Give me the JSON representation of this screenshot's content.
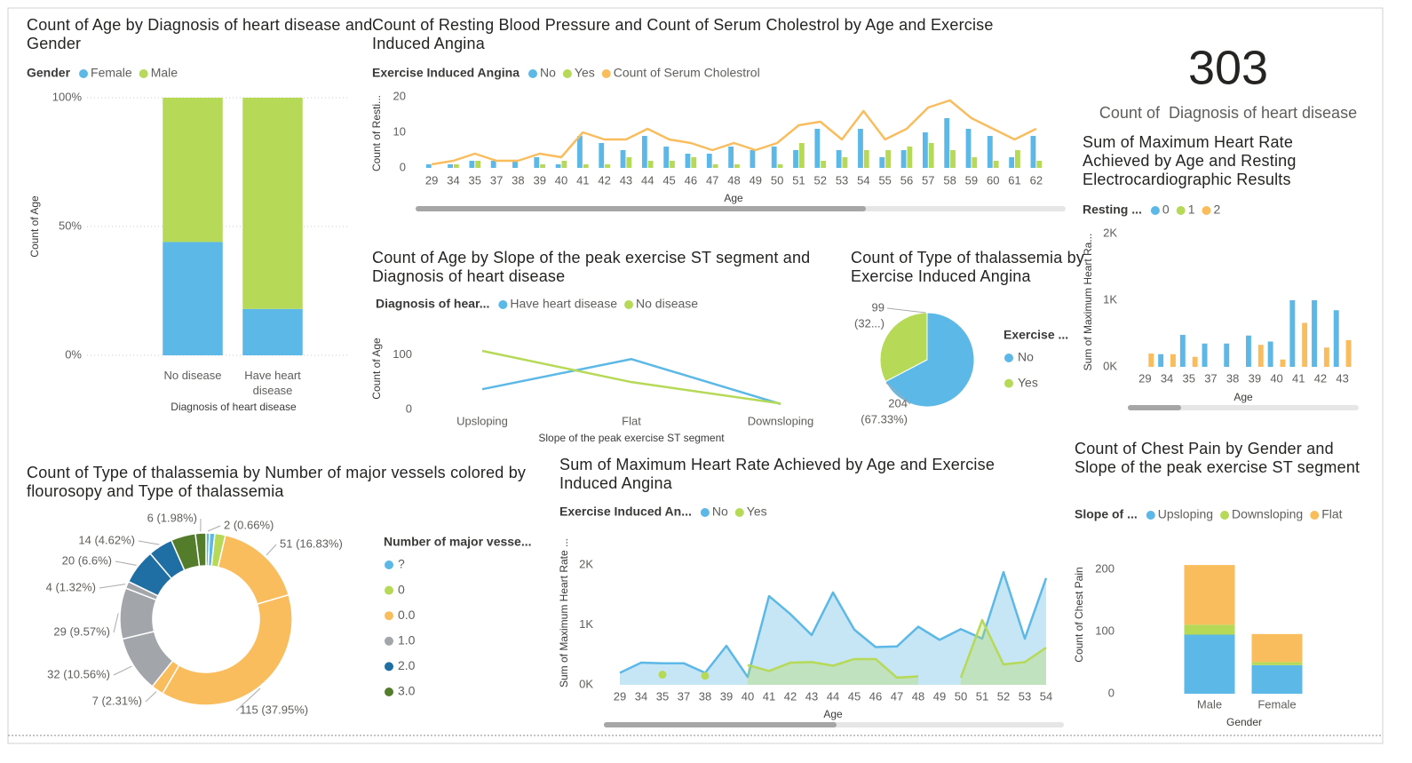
{
  "chart_data": [
    {
      "type": "bar",
      "stacked": true,
      "title": "Count of Age by Diagnosis of heart disease and Gender",
      "legend_title": "Gender",
      "categories": [
        "No disease",
        "Have heart disease"
      ],
      "series": [
        {
          "name": "Female",
          "color": "#5cb8e6",
          "values": [
            44,
            18
          ]
        },
        {
          "name": "Male",
          "color": "#b6d957",
          "values": [
            56,
            82
          ]
        }
      ],
      "ylim": [
        0,
        100
      ],
      "yticks": [
        {
          "value": 0,
          "label": "0%"
        },
        {
          "value": 50,
          "label": "50%"
        },
        {
          "value": 100,
          "label": "100%"
        }
      ],
      "x_label": "Diagnosis of heart disease",
      "y_label": "Count of Age",
      "grid": true
    },
    {
      "type": "combo",
      "title": "Count of Resting Blood Pressure and Count of Serum Cholestrol by Age and Exercise Induced Angina",
      "legend_title": "Exercise Induced Angina",
      "categories": [
        29,
        34,
        35,
        37,
        38,
        39,
        40,
        41,
        42,
        43,
        44,
        45,
        46,
        47,
        48,
        49,
        50,
        51,
        52,
        53,
        54,
        55,
        56,
        57,
        58,
        59,
        60,
        61,
        62
      ],
      "series": [
        {
          "name": "No",
          "color": "#5cb8e6",
          "values": [
            1,
            1,
            2,
            2,
            2,
            3,
            1,
            9,
            7,
            5,
            9,
            6,
            4,
            4,
            6,
            5,
            6,
            5,
            11,
            5,
            11,
            3,
            5,
            10,
            14,
            11,
            9,
            3,
            9
          ]
        },
        {
          "name": "Yes",
          "color": "#b6d957",
          "values": [
            0,
            1,
            2,
            0,
            0,
            1,
            2,
            1,
            1,
            3,
            2,
            2,
            3,
            1,
            1,
            0,
            1,
            7,
            2,
            3,
            5,
            5,
            6,
            7,
            5,
            3,
            2,
            5,
            2
          ]
        },
        {
          "name": "Count of Serum Cholestrol",
          "kind": "line",
          "color": "#f9bd5e",
          "values": [
            1,
            2,
            4,
            2,
            2,
            4,
            3,
            10,
            8,
            8,
            11,
            8,
            7,
            5,
            7,
            5,
            7,
            12,
            13,
            8,
            16,
            8,
            11,
            17,
            19,
            14,
            11,
            8,
            11
          ]
        }
      ],
      "ylim": [
        0,
        20
      ],
      "yticks": [
        0,
        10,
        20
      ],
      "x_label": "Age",
      "y_label": "Count of Resti..."
    },
    {
      "type": "line",
      "title": "Count of Age by Slope of the peak exercise ST segment and Diagnosis of heart disease",
      "legend_title": "Diagnosis of hear...",
      "categories": [
        "Upsloping",
        "Flat",
        "Downsloping"
      ],
      "series": [
        {
          "name": "Have heart disease",
          "color": "#5cb8e6",
          "values": [
            37,
            92,
            10
          ]
        },
        {
          "name": "No disease",
          "color": "#b6d957",
          "values": [
            107,
            50,
            11
          ]
        }
      ],
      "ylim": [
        0,
        120
      ],
      "yticks": [
        0,
        100
      ],
      "x_label": "Slope of the peak exercise ST segment",
      "y_label": "Count of Age"
    },
    {
      "type": "pie",
      "title": "Count of Type of thalassemia by Exercise Induced Angina",
      "legend_title": "Exercise ...",
      "categories": [
        "No",
        "Yes"
      ],
      "colors": [
        "#5cb8e6",
        "#b6d957"
      ],
      "values": [
        204,
        99
      ],
      "percent_labels": [
        "(67.33%)",
        "(32...)"
      ]
    },
    {
      "type": "card",
      "value": 303,
      "label": "Count of  Diagnosis of heart disease"
    },
    {
      "type": "bar",
      "stacked": false,
      "title": "Sum of Maximum Heart Rate Achieved by Age and Resting Electrocardiographic Results",
      "legend_title": "Resting ...",
      "categories": [
        29,
        34,
        35,
        37,
        38,
        39,
        40,
        41,
        42,
        43
      ],
      "series": [
        {
          "name": "0",
          "color": "#5cb8e6",
          "values": [
            null,
            190,
            480,
            350,
            350,
            470,
            380,
            1000,
            1000,
            850
          ]
        },
        {
          "name": "1",
          "color": "#b6d957",
          "values": [
            null,
            null,
            null,
            null,
            null,
            null,
            null,
            null,
            null,
            null
          ]
        },
        {
          "name": "2",
          "color": "#f9bd5e",
          "values": [
            200,
            190,
            150,
            null,
            null,
            330,
            110,
            660,
            290,
            400
          ]
        }
      ],
      "ylim": [
        0,
        2000
      ],
      "yticks": [
        {
          "value": 0,
          "label": "0K"
        },
        {
          "value": 1000,
          "label": "1K"
        },
        {
          "value": 2000,
          "label": "2K"
        }
      ],
      "x_label": "Age",
      "y_label": "Sum of Maximum Heart Ra..."
    },
    {
      "type": "donut",
      "title": "Count of Type of thalassemia by Number of major vessels colored by flourosopy and Type of thalassemia",
      "legend_title": "Number of major vesse...",
      "groups": [
        {
          "name": "?",
          "color": "#5cb8e6",
          "slices": [
            {
              "value": 2,
              "label": "2 (0.66%)"
            },
            {
              "value": 3
            }
          ]
        },
        {
          "name": "0",
          "color": "#b6d957",
          "slices": [
            {
              "value": 6
            }
          ]
        },
        {
          "name": "0.0",
          "color": "#f9bd5e",
          "slices": [
            {
              "value": 51,
              "label": "51 (16.83%)"
            },
            {
              "value": 115,
              "label": "115 (37.95%)"
            },
            {
              "value": 7,
              "label": "7 (2.31%)"
            }
          ]
        },
        {
          "name": "1.0",
          "color": "#a2a6aa",
          "slices": [
            {
              "value": 32,
              "label": "32 (10.56%)"
            },
            {
              "value": 29,
              "label": "29 (9.57%)"
            },
            {
              "value": 4,
              "label": "4 (1.32%)"
            }
          ]
        },
        {
          "name": "2.0",
          "color": "#1f6fa5",
          "slices": [
            {
              "value": 20,
              "label": "20 (6.6%)"
            },
            {
              "value": 14,
              "label": "14 (4.62%)"
            }
          ]
        },
        {
          "name": "3.0",
          "color": "#537d2a",
          "slices": [
            {
              "value": 14
            },
            {
              "value": 6,
              "label": "6 (1.98%)"
            }
          ]
        }
      ]
    },
    {
      "type": "area",
      "title": "Sum of Maximum Heart Rate Achieved by Age and Exercise Induced Angina",
      "legend_title": "Exercise Induced An...",
      "categories": [
        29,
        34,
        35,
        37,
        38,
        39,
        40,
        41,
        42,
        43,
        44,
        45,
        46,
        47,
        48,
        49,
        50,
        51,
        52,
        53,
        54
      ],
      "series": [
        {
          "name": "No",
          "color": "#5cb8e6",
          "values": [
            200,
            370,
            360,
            360,
            200,
            650,
            130,
            1480,
            1180,
            830,
            1540,
            920,
            630,
            640,
            970,
            750,
            930,
            770,
            1880,
            770,
            1780
          ]
        },
        {
          "name": "Yes",
          "color": "#b6d957",
          "values": [
            null,
            null,
            170,
            null,
            150,
            null,
            330,
            230,
            370,
            380,
            320,
            430,
            430,
            120,
            140,
            null,
            120,
            1080,
            340,
            380,
            620
          ]
        }
      ],
      "ylim": [
        0,
        2000
      ],
      "yticks": [
        {
          "value": 0,
          "label": "0K"
        },
        {
          "value": 1000,
          "label": "1K"
        },
        {
          "value": 2000,
          "label": "2K"
        }
      ],
      "x_label": "Age",
      "y_label": "Sum of Maximum Heart Rate ..."
    },
    {
      "type": "bar",
      "stacked": true,
      "title": "Count of Chest Pain by Gender and Slope of the peak exercise ST segment",
      "legend_title": "Slope of ...",
      "categories": [
        "Male",
        "Female"
      ],
      "series": [
        {
          "name": "Upsloping",
          "color": "#5cb8e6",
          "values": [
            95,
            46
          ]
        },
        {
          "name": "Downsloping",
          "color": "#b6d957",
          "values": [
            16,
            5
          ]
        },
        {
          "name": "Flat",
          "color": "#f9bd5e",
          "values": [
            96,
            45
          ]
        }
      ],
      "ylim": [
        0,
        220
      ],
      "yticks": [
        0,
        100,
        200
      ],
      "x_label": "Gender",
      "y_label": "Count of Chest Pain"
    }
  ]
}
